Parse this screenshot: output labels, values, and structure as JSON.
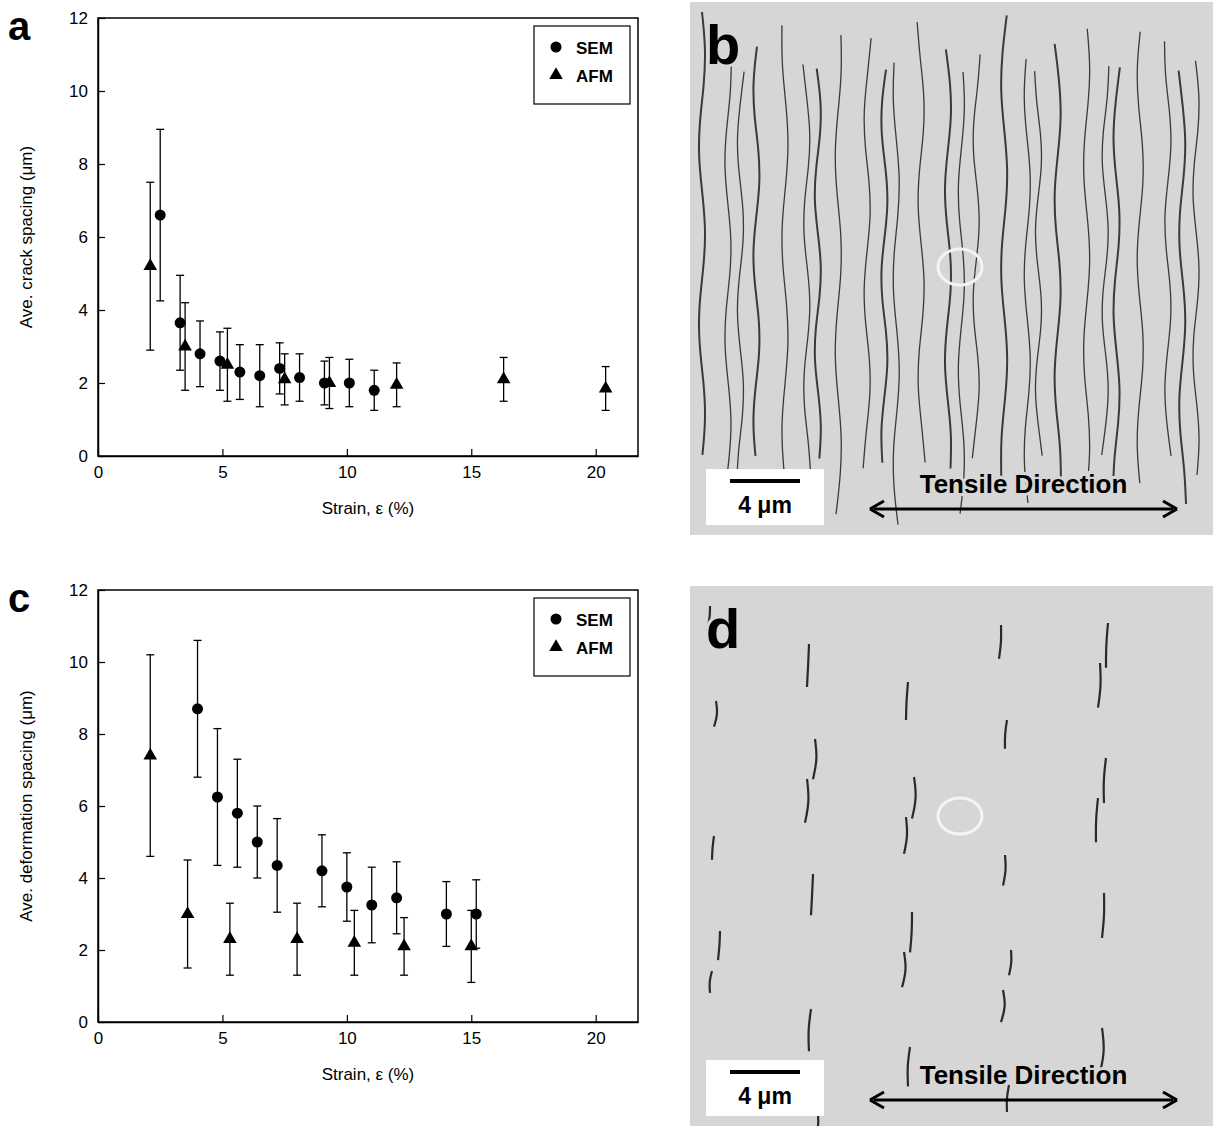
{
  "chart_data": [
    {
      "type": "scatter",
      "label": "a",
      "x_label": "Strain, ε (%)",
      "y_label": "Ave. crack spacing (μm)",
      "xlim": [
        0,
        21.7
      ],
      "xticks": [
        0,
        5,
        10,
        15,
        20
      ],
      "ylim": [
        0,
        12
      ],
      "yticks": [
        0,
        2,
        4,
        6,
        8,
        10,
        12
      ],
      "legend": "top-right",
      "series": [
        {
          "name": "SEM",
          "color": "#000000",
          "marker": "circle",
          "x": [
            2.5,
            3.3,
            4.1,
            4.9,
            5.7,
            6.5,
            7.3,
            8.1,
            9.1,
            10.1,
            11.1
          ],
          "values": [
            6.6,
            3.65,
            2.8,
            2.6,
            2.3,
            2.2,
            2.4,
            2.15,
            2.0,
            2.0,
            1.8
          ],
          "error": [
            2.35,
            1.3,
            0.9,
            0.8,
            0.75,
            0.85,
            0.7,
            0.65,
            0.6,
            0.65,
            0.55
          ]
        },
        {
          "name": "AFM",
          "color": "#000000",
          "marker": "triangle",
          "x": [
            2.1,
            3.5,
            5.2,
            7.5,
            9.3,
            12.0,
            16.3,
            20.4
          ],
          "values": [
            5.2,
            3.0,
            2.5,
            2.1,
            2.0,
            1.95,
            2.1,
            1.85
          ],
          "error": [
            2.3,
            1.2,
            1.0,
            0.7,
            0.7,
            0.6,
            0.6,
            0.6
          ]
        }
      ]
    },
    {
      "type": "scatter",
      "label": "c",
      "x_label": "Strain, ε (%)",
      "y_label": "Ave. deformation spacing (μm)",
      "xlim": [
        0,
        21.7
      ],
      "xticks": [
        0,
        5,
        10,
        15,
        20
      ],
      "ylim": [
        0,
        12
      ],
      "yticks": [
        0,
        2,
        4,
        6,
        8,
        10,
        12
      ],
      "legend": "top-right",
      "series": [
        {
          "name": "SEM",
          "color": "#000000",
          "marker": "circle",
          "x": [
            4.0,
            4.8,
            5.6,
            6.4,
            7.2,
            9.0,
            10.0,
            11.0,
            12.0,
            14.0,
            15.2
          ],
          "values": [
            8.7,
            6.25,
            5.8,
            5.0,
            4.35,
            4.2,
            3.75,
            3.25,
            3.45,
            3.0,
            3.0
          ],
          "error": [
            1.9,
            1.9,
            1.5,
            1.0,
            1.3,
            1.0,
            0.95,
            1.05,
            1.0,
            0.9,
            0.95
          ]
        },
        {
          "name": "AFM",
          "color": "#000000",
          "marker": "triangle",
          "x": [
            2.1,
            3.6,
            5.3,
            8.0,
            10.3,
            12.3,
            15.0
          ],
          "values": [
            7.4,
            3.0,
            2.3,
            2.3,
            2.2,
            2.1,
            2.1
          ],
          "error": [
            2.8,
            1.5,
            1.0,
            1.0,
            0.9,
            0.8,
            1.0
          ]
        }
      ]
    }
  ],
  "images": [
    {
      "label": "b",
      "scale_bar": "4 μm",
      "annotation": "Tensile Direction"
    },
    {
      "label": "d",
      "scale_bar": "4 μm",
      "annotation": "Tensile Direction"
    }
  ]
}
